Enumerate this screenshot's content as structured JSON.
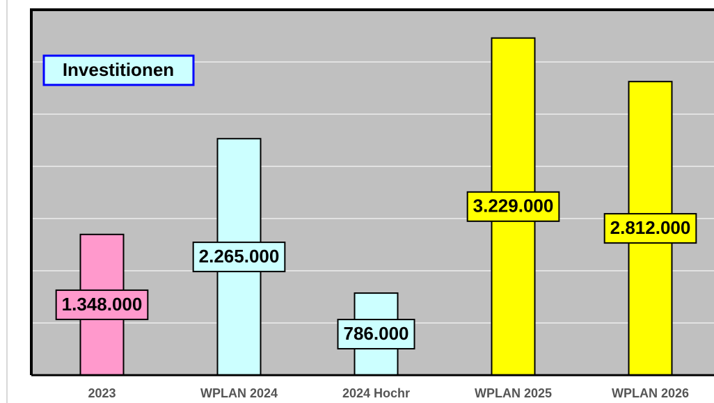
{
  "chart_data": {
    "type": "bar",
    "title": "Investitionen",
    "categories": [
      "2023",
      "WPLAN 2024",
      "2024 Hochr",
      "WPLAN 2025",
      "WPLAN 2026"
    ],
    "values": [
      1348000,
      2265000,
      786000,
      3229000,
      2812000
    ],
    "value_labels": [
      "1.348.000",
      "2.265.000",
      "786.000",
      "3.229.000",
      "2.812.000"
    ],
    "colors": [
      "#ff99cc",
      "#ccffff",
      "#ccffff",
      "#ffff00",
      "#ffff00"
    ],
    "ylim": [
      0,
      3500000
    ],
    "yticks": [
      0,
      500000,
      1000000,
      1500000,
      2000000,
      2500000,
      3000000,
      3500000
    ],
    "grid": true
  }
}
